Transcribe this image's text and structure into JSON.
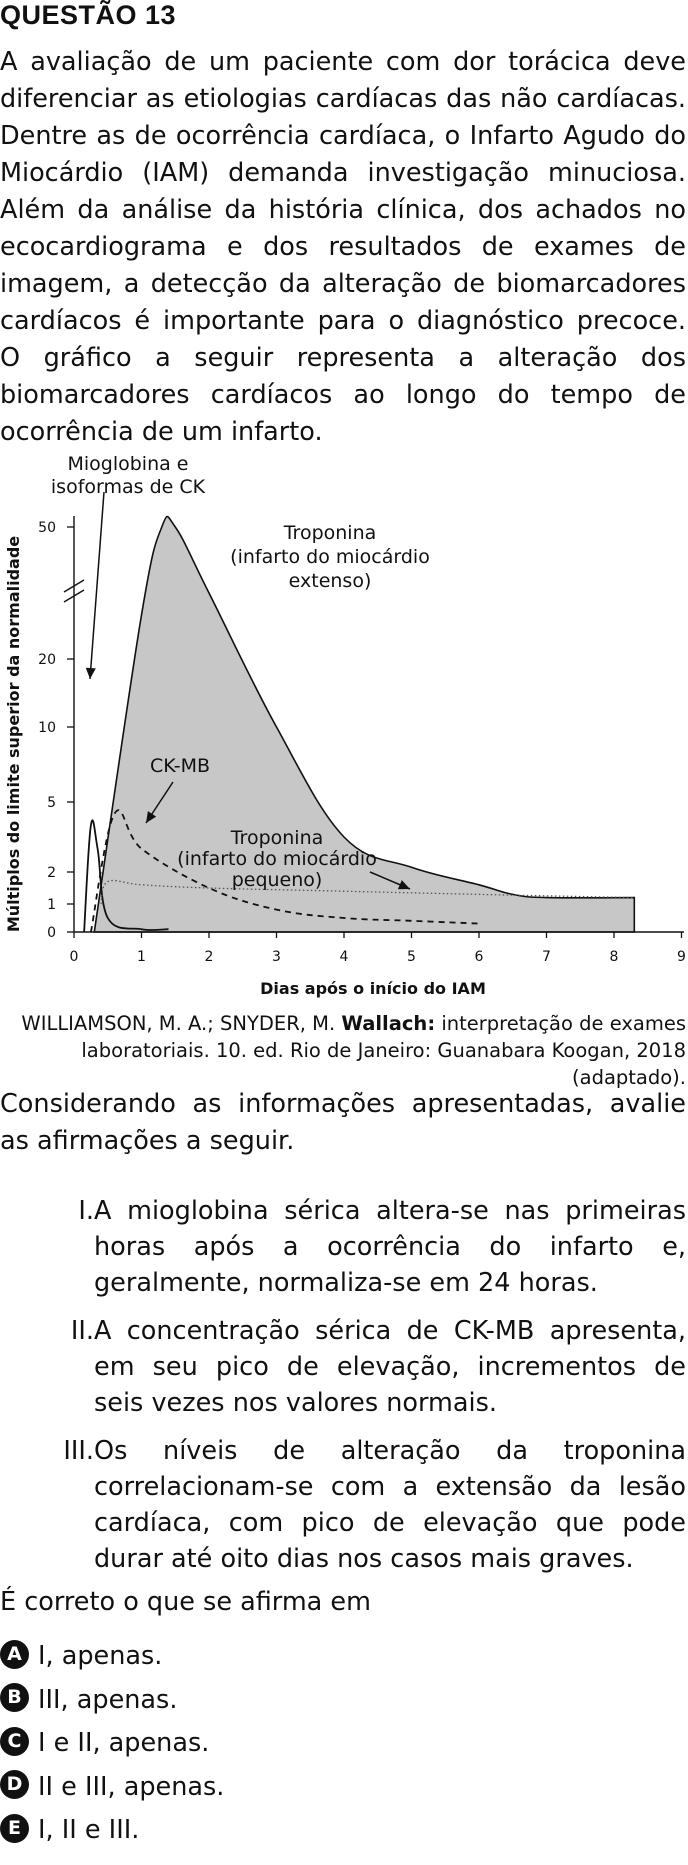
{
  "question": {
    "title": "QUESTÃO 13",
    "intro_lines": [
      "A avaliação de um paciente com dor torácica deve",
      "diferenciar as etiologias cardíacas das não cardíacas.",
      "Dentre as de ocorrência cardíaca, o Infarto Agudo do",
      "Miocárdio (IAM) demanda investigação minuciosa.",
      "Além da análise da história clínica, dos achados no",
      "ecocardiograma e dos resultados de exames de",
      "imagem, a detecção da alteração de biomarcadores",
      "cardíacos é importante para o diagnóstico precoce.",
      "O gráfico a seguir representa a alteração dos",
      "biomarcadores cardíacos ao longo do tempo de",
      "ocorrência de um infarto."
    ],
    "citation": {
      "line1_pre": "WILLIAMSON, M. A.; SNYDER, M. ",
      "line1_bold": "Wallach:",
      "line1_post": " interpretação de exames",
      "line2": "laboratoriais. 10. ed. Rio de Janeiro: Guanabara Koogan, 2018",
      "line3": "(adaptado)."
    },
    "prompt_lines": [
      "Considerando as informações apresentadas, avalie",
      "as afirmações a seguir."
    ],
    "statements": [
      {
        "num": "I.",
        "lines": [
          "A mioglobina sérica altera-se nas primeiras",
          "horas após a ocorrência do infarto e,",
          "geralmente, normaliza-se em 24 horas."
        ]
      },
      {
        "num": "II.",
        "lines": [
          "A concentração sérica de CK-MB apresenta,",
          "em seu pico de elevação, incrementos de",
          "seis vezes nos valores normais."
        ]
      },
      {
        "num": "III.",
        "lines": [
          "Os níveis de alteração da troponina",
          "correlacionam-se com a extensão da lesão",
          "cardíaca, com pico de elevação que pode",
          "durar até oito dias nos casos mais graves."
        ]
      }
    ],
    "question_text": "É correto o que se afirma em",
    "options": [
      {
        "letter": "A",
        "text": "I, apenas."
      },
      {
        "letter": "B",
        "text": "III, apenas."
      },
      {
        "letter": "C",
        "text": "I e II, apenas."
      },
      {
        "letter": "D",
        "text": "II e III, apenas."
      },
      {
        "letter": "E",
        "text": "I, II e III."
      }
    ]
  },
  "chart_data": {
    "type": "line",
    "title": "",
    "xlabel": "Dias após o início do IAM",
    "ylabel": "Múltiplos do limite superior da normalidade",
    "x_ticks": [
      "0",
      "1",
      "2",
      "3",
      "4",
      "5",
      "6",
      "7",
      "8",
      "9"
    ],
    "y_ticks": [
      "0",
      "1",
      "2",
      "5",
      "10",
      "20",
      "50"
    ],
    "y_axis_break": true,
    "xlim": [
      0,
      9
    ],
    "grid": false,
    "series": [
      {
        "name": "Mioglobina e isoformas de CK",
        "label_lines": [
          "Mioglobina e",
          "isoformas de CK"
        ],
        "style": "solid",
        "x": [
          0.15,
          0.25,
          0.35,
          0.5,
          1.0,
          1.4
        ],
        "y": [
          0,
          4,
          3,
          0.5,
          0.1,
          0.1
        ]
      },
      {
        "name": "CK-MB",
        "label_lines": [
          "CK-MB"
        ],
        "style": "dashed",
        "x": [
          0.25,
          0.6,
          1.0,
          2.0,
          3.0,
          4.0,
          5.0,
          6.0
        ],
        "y": [
          0,
          4.5,
          3.0,
          1.5,
          0.8,
          0.5,
          0.4,
          0.3
        ]
      },
      {
        "name": "Troponina (infarto do miocárdio pequeno)",
        "label_lines": [
          "Troponina",
          "(infarto do miocárdio",
          "pequeno)"
        ],
        "style": "dotted",
        "x": [
          0.4,
          0.5,
          1.0,
          2.0,
          4.0,
          6.0,
          8.3
        ],
        "y": [
          1.0,
          1.7,
          1.6,
          1.5,
          1.4,
          1.3,
          1.2
        ]
      },
      {
        "name": "Troponina (infarto do miocárdio extenso)",
        "label_lines": [
          "Troponina",
          "(infarto do miocárdio",
          "extenso)"
        ],
        "style": "filled-area",
        "fill": "#c7c7c7",
        "x": [
          0.3,
          1.0,
          1.3,
          1.5,
          2.0,
          3.0,
          4.0,
          5.0,
          6.0,
          6.5,
          7.0,
          8.3
        ],
        "y": [
          0,
          30,
          50,
          50,
          35,
          10,
          3.5,
          2.2,
          1.6,
          1.3,
          1.2,
          1.2
        ]
      }
    ]
  }
}
